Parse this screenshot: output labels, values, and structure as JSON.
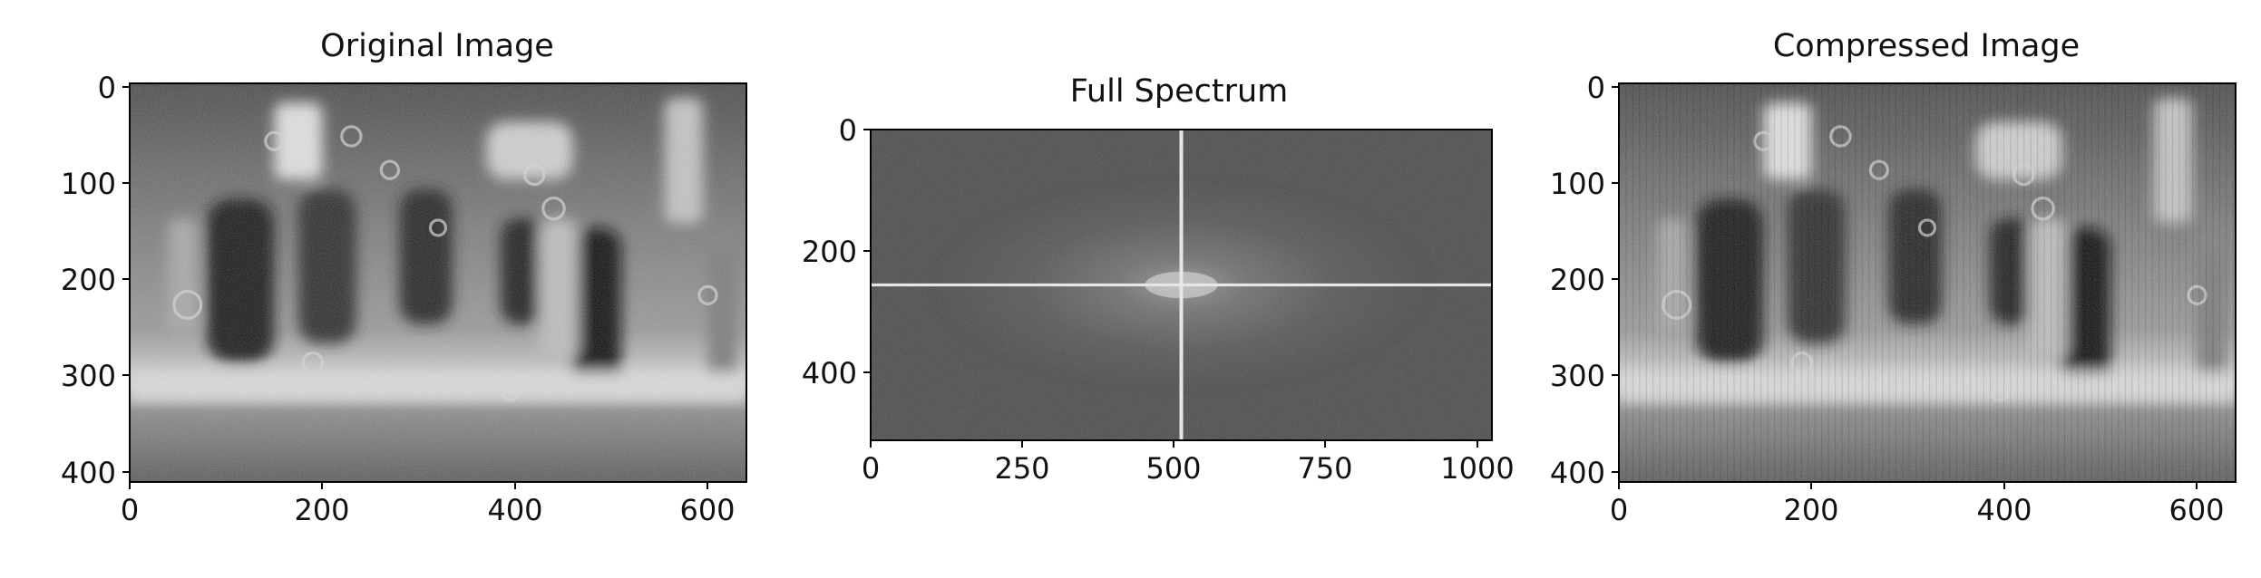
{
  "chart_data": [
    {
      "type": "image",
      "title": "Original Image",
      "xlim": [
        0,
        640
      ],
      "ylim": [
        414,
        0
      ],
      "x_ticks": [
        "0",
        "200",
        "400",
        "600"
      ],
      "y_ticks": [
        "0",
        "100",
        "200",
        "300",
        "400"
      ],
      "colormap": "gray",
      "content": "grayscale photo of blurred pedestrians walking on a street"
    },
    {
      "type": "image",
      "title": "Full Spectrum",
      "xlim": [
        0,
        1024
      ],
      "ylim": [
        512,
        0
      ],
      "x_ticks": [
        "0",
        "250",
        "500",
        "750",
        "1000"
      ],
      "y_ticks": [
        "0",
        "200",
        "400"
      ],
      "colormap": "gray",
      "content": "log-magnitude Fourier spectrum with bright cross through the center"
    },
    {
      "type": "image",
      "title": "Compressed Image",
      "xlim": [
        0,
        640
      ],
      "ylim": [
        414,
        0
      ],
      "x_ticks": [
        "0",
        "200",
        "400",
        "600"
      ],
      "y_ticks": [
        "0",
        "100",
        "200",
        "300",
        "400"
      ],
      "colormap": "gray",
      "content": "compressed reconstruction of the pedestrian photo with ringing artifacts"
    }
  ]
}
